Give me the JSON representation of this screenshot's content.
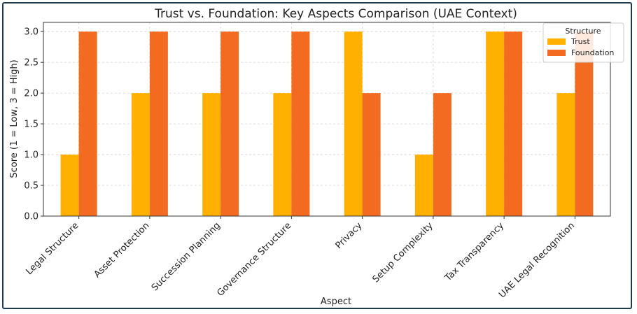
{
  "chart_data": {
    "type": "bar",
    "title": "Trust vs. Foundation: Key Aspects Comparison (UAE Context)",
    "xlabel": "Aspect",
    "ylabel": "Score (1 = Low, 3 = High)",
    "ylim": [
      0,
      3.15
    ],
    "yticks": [
      "0.0",
      "0.5",
      "1.0",
      "1.5",
      "2.0",
      "2.5",
      "3.0"
    ],
    "grid": true,
    "categories": [
      "Legal Structure",
      "Asset Protection",
      "Succession Planning",
      "Governance Structure",
      "Privacy",
      "Setup Complexity",
      "Tax Transparency",
      "UAE Legal Recognition"
    ],
    "series": [
      {
        "name": "Trust",
        "color": "#FFB000",
        "values": [
          1,
          2,
          2,
          2,
          3,
          1,
          3,
          2
        ]
      },
      {
        "name": "Foundation",
        "color": "#F26B21",
        "values": [
          3,
          3,
          3,
          3,
          2,
          2,
          3,
          3
        ]
      }
    ],
    "legend": {
      "title": "Structure",
      "placement": "top-right"
    }
  }
}
